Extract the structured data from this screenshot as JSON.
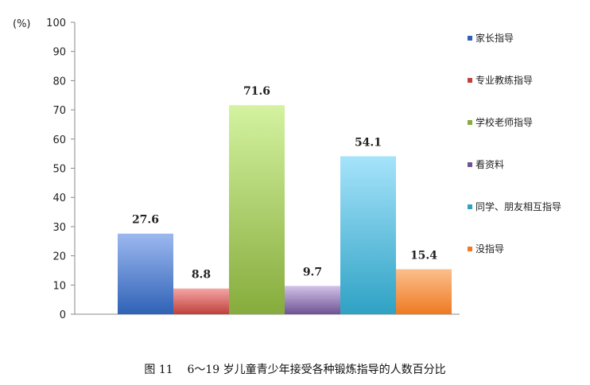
{
  "caption": "图 11    6～19 岁儿童青少年接受各种锻炼指导的人数百分比",
  "chart_data": {
    "type": "bar",
    "unit_label": "(%)",
    "ylim": [
      0,
      100
    ],
    "yticks": [
      0,
      10,
      20,
      30,
      40,
      50,
      60,
      70,
      80,
      90,
      100
    ],
    "grid": false,
    "legend_position": "right",
    "series": [
      {
        "name": "家长指导",
        "value": 27.6,
        "label": "27.6",
        "color_top": "#9DB8F0",
        "color_bottom": "#2F62B6"
      },
      {
        "name": "专业教练指导",
        "value": 8.8,
        "label": "8.8",
        "color_top": "#F4A6A4",
        "color_bottom": "#C0403C"
      },
      {
        "name": "学校老师指导",
        "value": 71.6,
        "label": "71.6",
        "color_top": "#D4F2A0",
        "color_bottom": "#86AC3C"
      },
      {
        "name": "看资料",
        "value": 9.7,
        "label": "9.7",
        "color_top": "#D2C2E8",
        "color_bottom": "#6E5394"
      },
      {
        "name": "同学、朋友相互指导",
        "value": 54.1,
        "label": "54.1",
        "color_top": "#A6E3FB",
        "color_bottom": "#2FA2C4"
      },
      {
        "name": "没指导",
        "value": 15.4,
        "label": "15.4",
        "color_top": "#FBBF8C",
        "color_bottom": "#EE7A22"
      }
    ]
  }
}
